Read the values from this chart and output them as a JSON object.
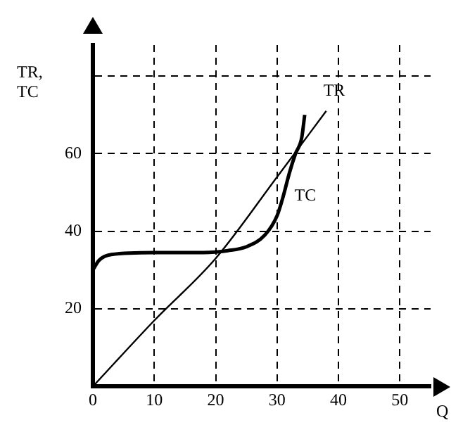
{
  "chart_data": {
    "type": "line",
    "xlabel": "Q",
    "ylabel": "TR, TC",
    "xlim": [
      0,
      55
    ],
    "xticks": [
      0,
      10,
      20,
      30,
      40,
      50
    ],
    "ylim": [
      0,
      88
    ],
    "yticks": [
      20,
      40,
      60,
      {
        "value": 80,
        "label": null
      }
    ],
    "grid": true,
    "legend": false,
    "marker": "none",
    "line_style": "solid",
    "series": [
      {
        "name": "TR",
        "color": "#000000",
        "x": [
          0,
          10,
          20,
          30,
          38
        ],
        "values": [
          0,
          17,
          33,
          54,
          71
        ]
      },
      {
        "name": "TC",
        "color": "#000000",
        "x": [
          0,
          1,
          3,
          10,
          18,
          22,
          25,
          28,
          30,
          31,
          32,
          33,
          34,
          34.5
        ],
        "values": [
          30,
          32.5,
          34,
          34.5,
          34.5,
          35,
          36,
          39,
          44,
          49,
          55,
          60,
          64,
          70
        ]
      }
    ]
  }
}
